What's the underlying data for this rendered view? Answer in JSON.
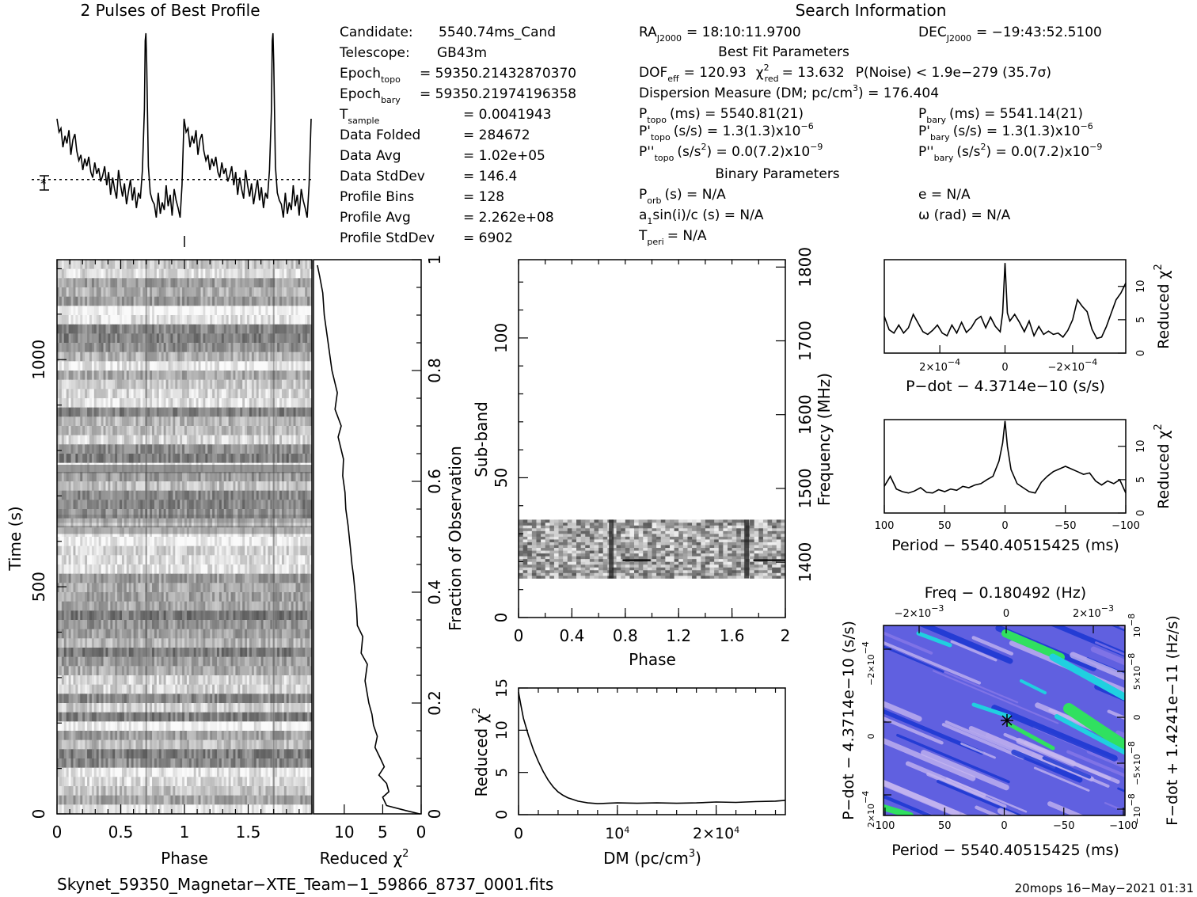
{
  "title_profile": "2 Pulses of Best Profile",
  "title_search": "Search Information",
  "candidate_info": [
    {
      "label": "Candidate:",
      "value": "5540.74ms_Cand"
    },
    {
      "label": "Telescope:",
      "value": "GB43m"
    },
    {
      "label": "Epoch",
      "sub": "topo",
      "value": "= 59350.21432870370"
    },
    {
      "label": "Epoch",
      "sub": "bary",
      "value": "= 59350.21974196358"
    },
    {
      "label": "T",
      "sub": "sample",
      "value": "=   0.0041943"
    },
    {
      "label": "Data Folded",
      "value": "=   284672"
    },
    {
      "label": "Data Avg",
      "value": "=   1.02e+05"
    },
    {
      "label": "Data StdDev",
      "value": "=   146.4"
    },
    {
      "label": "Profile Bins",
      "value": "=   128"
    },
    {
      "label": "Profile Avg",
      "value": "=   2.262e+08"
    },
    {
      "label": "Profile StdDev",
      "value": "=   6902"
    }
  ],
  "search_info": {
    "ra": "RA",
    "ra_sub": "J2000",
    "ra_val": "= 18:10:11.9700",
    "dec": "DEC",
    "dec_sub": "J2000",
    "dec_val": "= −19:43:52.5100",
    "best_fit_header": "Best Fit Parameters",
    "dof": "DOF",
    "dof_sub": "eff",
    "dof_val": "= 120.93",
    "chi": "χ",
    "chi_sup": "2",
    "chi_sub": "red",
    "chi_val": "= 13.632",
    "pnoise": "P(Noise) < 1.9e−279   (35.7σ)",
    "dm_line": "Dispersion Measure (DM; pc/cm",
    "dm_sup": "3",
    "dm_val": ") = 176.404",
    "ptopo": "P",
    "ptopo_sub": "topo",
    "ptopo_val": "(ms)  =   5540.81(21)",
    "pbary": "P",
    "pbary_sub": "bary",
    "pbary_val": "(ms)  =   5541.14(21)",
    "pdtopo": "P'",
    "pdtopo_sub": "topo",
    "pdtopo_val": "(s/s) =   1.3(1.3)x10",
    "pdtopo_exp": "−6",
    "pdbary": "P'",
    "pdbary_sub": "bary",
    "pdbary_val": "(s/s) =   1.3(1.3)x10",
    "pdbary_exp": "−6",
    "pddtopo": "P''",
    "pddtopo_sub": "topo",
    "pddtopo_val": "(s/s",
    "pddtopo_sup": "2",
    "pddtopo_val2": ") = 0.0(7.2)x10",
    "pddtopo_exp": "−9",
    "pddbary": "P''",
    "pddbary_sub": "bary",
    "pddbary_val": "(s/s",
    "pddbary_sup": "2",
    "pddbary_val2": ") = 0.0(7.2)x10",
    "pddbary_exp": "−9",
    "binary_header": "Binary Parameters",
    "porb": "P",
    "porb_sub": "orb",
    "porb_val": "(s) = N/A",
    "ecc": "e = N/A",
    "a1": "a",
    "a1_sub": "1",
    "a1_val": "sin(i)/c (s) = N/A",
    "omega": "ω (rad) = N/A",
    "tperi": "T",
    "tperi_sub": "peri",
    "tperi_val": "= N/A"
  },
  "footer_filename": "Skynet_59350_Magnetar−XTE_Team−1_59866_8737_0001.fits",
  "footer_stamp": "20mops 16−May−2021 01:31",
  "chart_data": [
    {
      "name": "profile",
      "type": "line",
      "x": [
        0,
        0.016,
        0.031,
        0.047,
        0.063,
        0.078,
        0.094,
        0.109,
        0.125,
        0.141,
        0.156,
        0.172,
        0.188,
        0.203,
        0.219,
        0.234,
        0.25,
        0.266,
        0.281,
        0.297,
        0.313,
        0.328,
        0.344,
        0.359,
        0.375,
        0.391,
        0.406,
        0.422,
        0.438,
        0.453,
        0.469,
        0.484,
        0.5,
        0.516,
        0.531,
        0.547,
        0.563,
        0.578,
        0.594,
        0.609,
        0.625,
        0.641,
        0.656,
        0.672,
        0.688,
        0.694,
        0.7,
        0.706,
        0.719,
        0.734,
        0.75,
        0.766,
        0.781,
        0.797,
        0.813,
        0.828,
        0.844,
        0.859,
        0.875,
        0.891,
        0.906,
        0.922,
        0.938,
        0.953,
        0.969,
        0.984,
        1.0
      ],
      "y": [
        0.55,
        0.48,
        0.5,
        0.4,
        0.46,
        0.42,
        0.49,
        0.36,
        0.44,
        0.47,
        0.38,
        0.33,
        0.36,
        0.28,
        0.34,
        0.3,
        0.35,
        0.27,
        0.24,
        0.32,
        0.26,
        0.29,
        0.22,
        0.25,
        0.3,
        0.2,
        0.27,
        0.15,
        0.24,
        0.18,
        0.13,
        0.28,
        0.2,
        0.14,
        0.21,
        0.1,
        0.17,
        0.23,
        0.12,
        0.19,
        0.08,
        0.16,
        0.13,
        0.28,
        0.6,
        0.96,
        1.0,
        0.84,
        0.3,
        0.16,
        0.12,
        0.1,
        0.03,
        0.16,
        0.05,
        0.11,
        0.07,
        0.2,
        0.09,
        0.15,
        0.04,
        0.18,
        0.12,
        0.08,
        0.03,
        0.2,
        0.55
      ],
      "period_repeat": 2,
      "mean_line": 0.23
    },
    {
      "name": "time_phase_reduced_chi2",
      "type": "line",
      "xlim": [
        14,
        0
      ],
      "xticks": [
        "10",
        "5",
        "0"
      ],
      "ylim": [
        0,
        1
      ],
      "yticks": [
        "0",
        "0.2",
        "0.4",
        "0.6",
        "0.8",
        "1"
      ],
      "ylabel": "Fraction of Observation",
      "xlabel": "Reduced χ",
      "xlabel_sup": "2",
      "points": [
        [
          0.2,
          0
        ],
        [
          2,
          0.006
        ],
        [
          4.5,
          0.015
        ],
        [
          5,
          0.03
        ],
        [
          4.2,
          0.04
        ],
        [
          4.5,
          0.055
        ],
        [
          5.5,
          0.07
        ],
        [
          4.8,
          0.085
        ],
        [
          5.3,
          0.1
        ],
        [
          6,
          0.12
        ],
        [
          5.7,
          0.14
        ],
        [
          6.2,
          0.16
        ],
        [
          6.4,
          0.18
        ],
        [
          6.8,
          0.2
        ],
        [
          7.3,
          0.24
        ],
        [
          7,
          0.27
        ],
        [
          7.8,
          0.29
        ],
        [
          7.6,
          0.32
        ],
        [
          8.3,
          0.34
        ],
        [
          8.4,
          0.37
        ],
        [
          8.6,
          0.4
        ],
        [
          8.8,
          0.43
        ],
        [
          9,
          0.45
        ],
        [
          9.2,
          0.48
        ],
        [
          9.5,
          0.52
        ],
        [
          9.8,
          0.55
        ],
        [
          9.9,
          0.58
        ],
        [
          10.2,
          0.61
        ],
        [
          10.1,
          0.64
        ],
        [
          10.8,
          0.68
        ],
        [
          10.4,
          0.7
        ],
        [
          11.2,
          0.73
        ],
        [
          10.9,
          0.76
        ],
        [
          11.6,
          0.8
        ],
        [
          11.9,
          0.83
        ],
        [
          12.2,
          0.86
        ],
        [
          12.6,
          0.9
        ],
        [
          12.8,
          0.94
        ],
        [
          13.2,
          0.97
        ],
        [
          13.5,
          0.99
        ]
      ]
    },
    {
      "name": "time_phase_greyscale",
      "type": "heatmap",
      "xlabel": "Phase",
      "ylabel": "Time (s)",
      "xlim": [
        0,
        2
      ],
      "xticks": [
        "0",
        "0.5",
        "1",
        "1.5"
      ],
      "ylim": [
        0,
        1220
      ],
      "yticks": [
        "0",
        "500",
        "1000"
      ]
    },
    {
      "name": "subband_phase",
      "type": "heatmap",
      "xlabel": "Phase",
      "ylabel": "Sub-band",
      "y2label": "Frequency (MHz)",
      "xlim": [
        0,
        2
      ],
      "xticks": [
        "0",
        "0.4",
        "0.8",
        "1.2",
        "1.6",
        "2"
      ],
      "ylim": [
        0,
        128
      ],
      "yticks": [
        "0",
        "50",
        "100"
      ],
      "y2ticks": [
        "1400",
        "1500",
        "1600",
        "1700",
        "1800"
      ],
      "active_band": [
        14,
        35
      ]
    },
    {
      "name": "dm_curve",
      "type": "line",
      "xlabel": "DM (pc/cm",
      "xlabel_sup": "3",
      "xlabel_end": ")",
      "ylabel": "Reduced χ",
      "ylabel_sup": "2",
      "xlim": [
        0,
        27000
      ],
      "ylim": [
        0,
        15
      ],
      "yticks": [
        "0",
        "5",
        "10",
        "15"
      ],
      "xticks": [
        {
          "label": "0",
          "v": 0
        },
        {
          "label": "10",
          "exp": "4",
          "v": 10000
        },
        {
          "label": "2×10",
          "exp": "4",
          "v": 20000
        }
      ],
      "x": [
        0,
        200,
        500,
        1000,
        1500,
        2000,
        2500,
        3000,
        3500,
        4000,
        4500,
        5000,
        5500,
        6000,
        6500,
        7000,
        7500,
        8000,
        9000,
        10000,
        12000,
        14000,
        16000,
        18000,
        20000,
        22000,
        24000,
        26000,
        27000
      ],
      "y": [
        14.5,
        13.2,
        11.4,
        9.4,
        7.7,
        6.3,
        5.1,
        4.1,
        3.3,
        2.7,
        2.3,
        2.0,
        1.8,
        1.6,
        1.5,
        1.4,
        1.35,
        1.3,
        1.35,
        1.4,
        1.35,
        1.4,
        1.35,
        1.4,
        1.5,
        1.45,
        1.55,
        1.6,
        1.7
      ]
    },
    {
      "name": "pdot_curve",
      "type": "line",
      "xlabel": "P−dot − 4.3714e−10 (s/s)",
      "ylabel": "Reduced χ",
      "ylabel_sup": "2",
      "ylim": [
        0,
        14
      ],
      "yticks": [
        "0",
        "5",
        "10"
      ],
      "xticks": [
        {
          "label": "2×10",
          "exp": "−4",
          "f": 0.23
        },
        {
          "label": "0",
          "f": 0.5
        },
        {
          "label": "−2×10",
          "exp": "−4",
          "f": 0.78
        }
      ],
      "x": [
        0,
        0.02,
        0.04,
        0.06,
        0.08,
        0.1,
        0.12,
        0.14,
        0.16,
        0.18,
        0.2,
        0.22,
        0.24,
        0.26,
        0.28,
        0.3,
        0.32,
        0.34,
        0.36,
        0.38,
        0.4,
        0.42,
        0.44,
        0.46,
        0.48,
        0.49,
        0.5,
        0.51,
        0.52,
        0.54,
        0.56,
        0.58,
        0.6,
        0.62,
        0.64,
        0.66,
        0.68,
        0.7,
        0.72,
        0.74,
        0.76,
        0.78,
        0.8,
        0.82,
        0.84,
        0.86,
        0.88,
        0.9,
        0.92,
        0.94,
        0.96,
        0.98,
        1.0
      ],
      "y": [
        5.5,
        3.5,
        3.0,
        4.2,
        3.0,
        3.8,
        5.8,
        4.5,
        3.2,
        2.8,
        3.4,
        4.2,
        3.0,
        2.6,
        4.2,
        3.0,
        4.6,
        3.1,
        3.8,
        5.0,
        5.5,
        3.8,
        5.4,
        4.0,
        3.2,
        6.0,
        13.5,
        6.0,
        4.8,
        5.8,
        4.6,
        3.2,
        4.8,
        2.6,
        4.0,
        2.8,
        3.3,
        2.8,
        3.0,
        2.4,
        3.4,
        5.0,
        8.0,
        7.0,
        6.2,
        3.6,
        2.2,
        2.4,
        4.0,
        6.0,
        8.0,
        9.0,
        10.5
      ]
    },
    {
      "name": "period_curve",
      "type": "line",
      "xlabel": "Period − 5540.40515425 (ms)",
      "ylabel": "Reduced χ",
      "ylabel_sup": "2",
      "xlim": [
        100,
        -100
      ],
      "xticks": [
        "100",
        "50",
        "0",
        "−50",
        "−100"
      ],
      "ylim": [
        0,
        14
      ],
      "yticks": [
        "0",
        "5",
        "10"
      ],
      "x": [
        100,
        95,
        90,
        85,
        80,
        75,
        70,
        65,
        60,
        55,
        50,
        45,
        40,
        35,
        30,
        25,
        20,
        15,
        10,
        5,
        2,
        0,
        -2,
        -5,
        -10,
        -15,
        -20,
        -25,
        -30,
        -35,
        -40,
        -45,
        -50,
        -55,
        -60,
        -65,
        -70,
        -75,
        -80,
        -85,
        -90,
        -95,
        -100
      ],
      "y": [
        4.0,
        5.5,
        3.6,
        3.2,
        3.0,
        3.3,
        3.8,
        3.1,
        3.0,
        3.5,
        3.2,
        3.6,
        3.4,
        4.0,
        3.8,
        4.2,
        4.4,
        5.0,
        5.5,
        7.8,
        10.5,
        13.8,
        10.0,
        6.5,
        4.4,
        3.8,
        3.2,
        3.0,
        4.6,
        5.5,
        6.2,
        6.6,
        7.0,
        6.6,
        6.2,
        5.8,
        6.0,
        4.8,
        4.2,
        4.8,
        4.4,
        5.0,
        3.0
      ]
    },
    {
      "name": "period_pdot_plane",
      "type": "heatmap",
      "title": "Freq − 0.180492 (Hz)",
      "xlabel": "Period − 5540.40515425 (ms)",
      "ylabel": "P−dot − 4.3714e−10 (s/s)",
      "y2label": "F−dot + 1.4241e−11 (Hz/s)",
      "xticks": [
        "100",
        "50",
        "0",
        "−50",
        "−100"
      ],
      "top_ticks": [
        {
          "label": "−2×10",
          "exp": "−3"
        },
        {
          "label": "0"
        },
        {
          "label": "2×10",
          "exp": "−3"
        }
      ],
      "left_ticks": [
        {
          "label": "−2×10",
          "exp": "−4"
        },
        {
          "label": "0"
        },
        {
          "label": "2×10",
          "exp": "−4"
        }
      ],
      "right_ticks": [
        {
          "label": "−10",
          "exp": "−8"
        },
        {
          "label": "−5×10",
          "exp": "−8"
        },
        {
          "label": "0"
        },
        {
          "label": "5×10",
          "exp": "−8"
        },
        {
          "label": "10",
          "exp": "−8"
        }
      ]
    }
  ],
  "colors": {
    "plane_base": "#6060e0",
    "plane_light": "#c8b8f0",
    "plane_cyan": "#20d0e0",
    "plane_green": "#30e060",
    "plane_blue": "#1030d0"
  }
}
